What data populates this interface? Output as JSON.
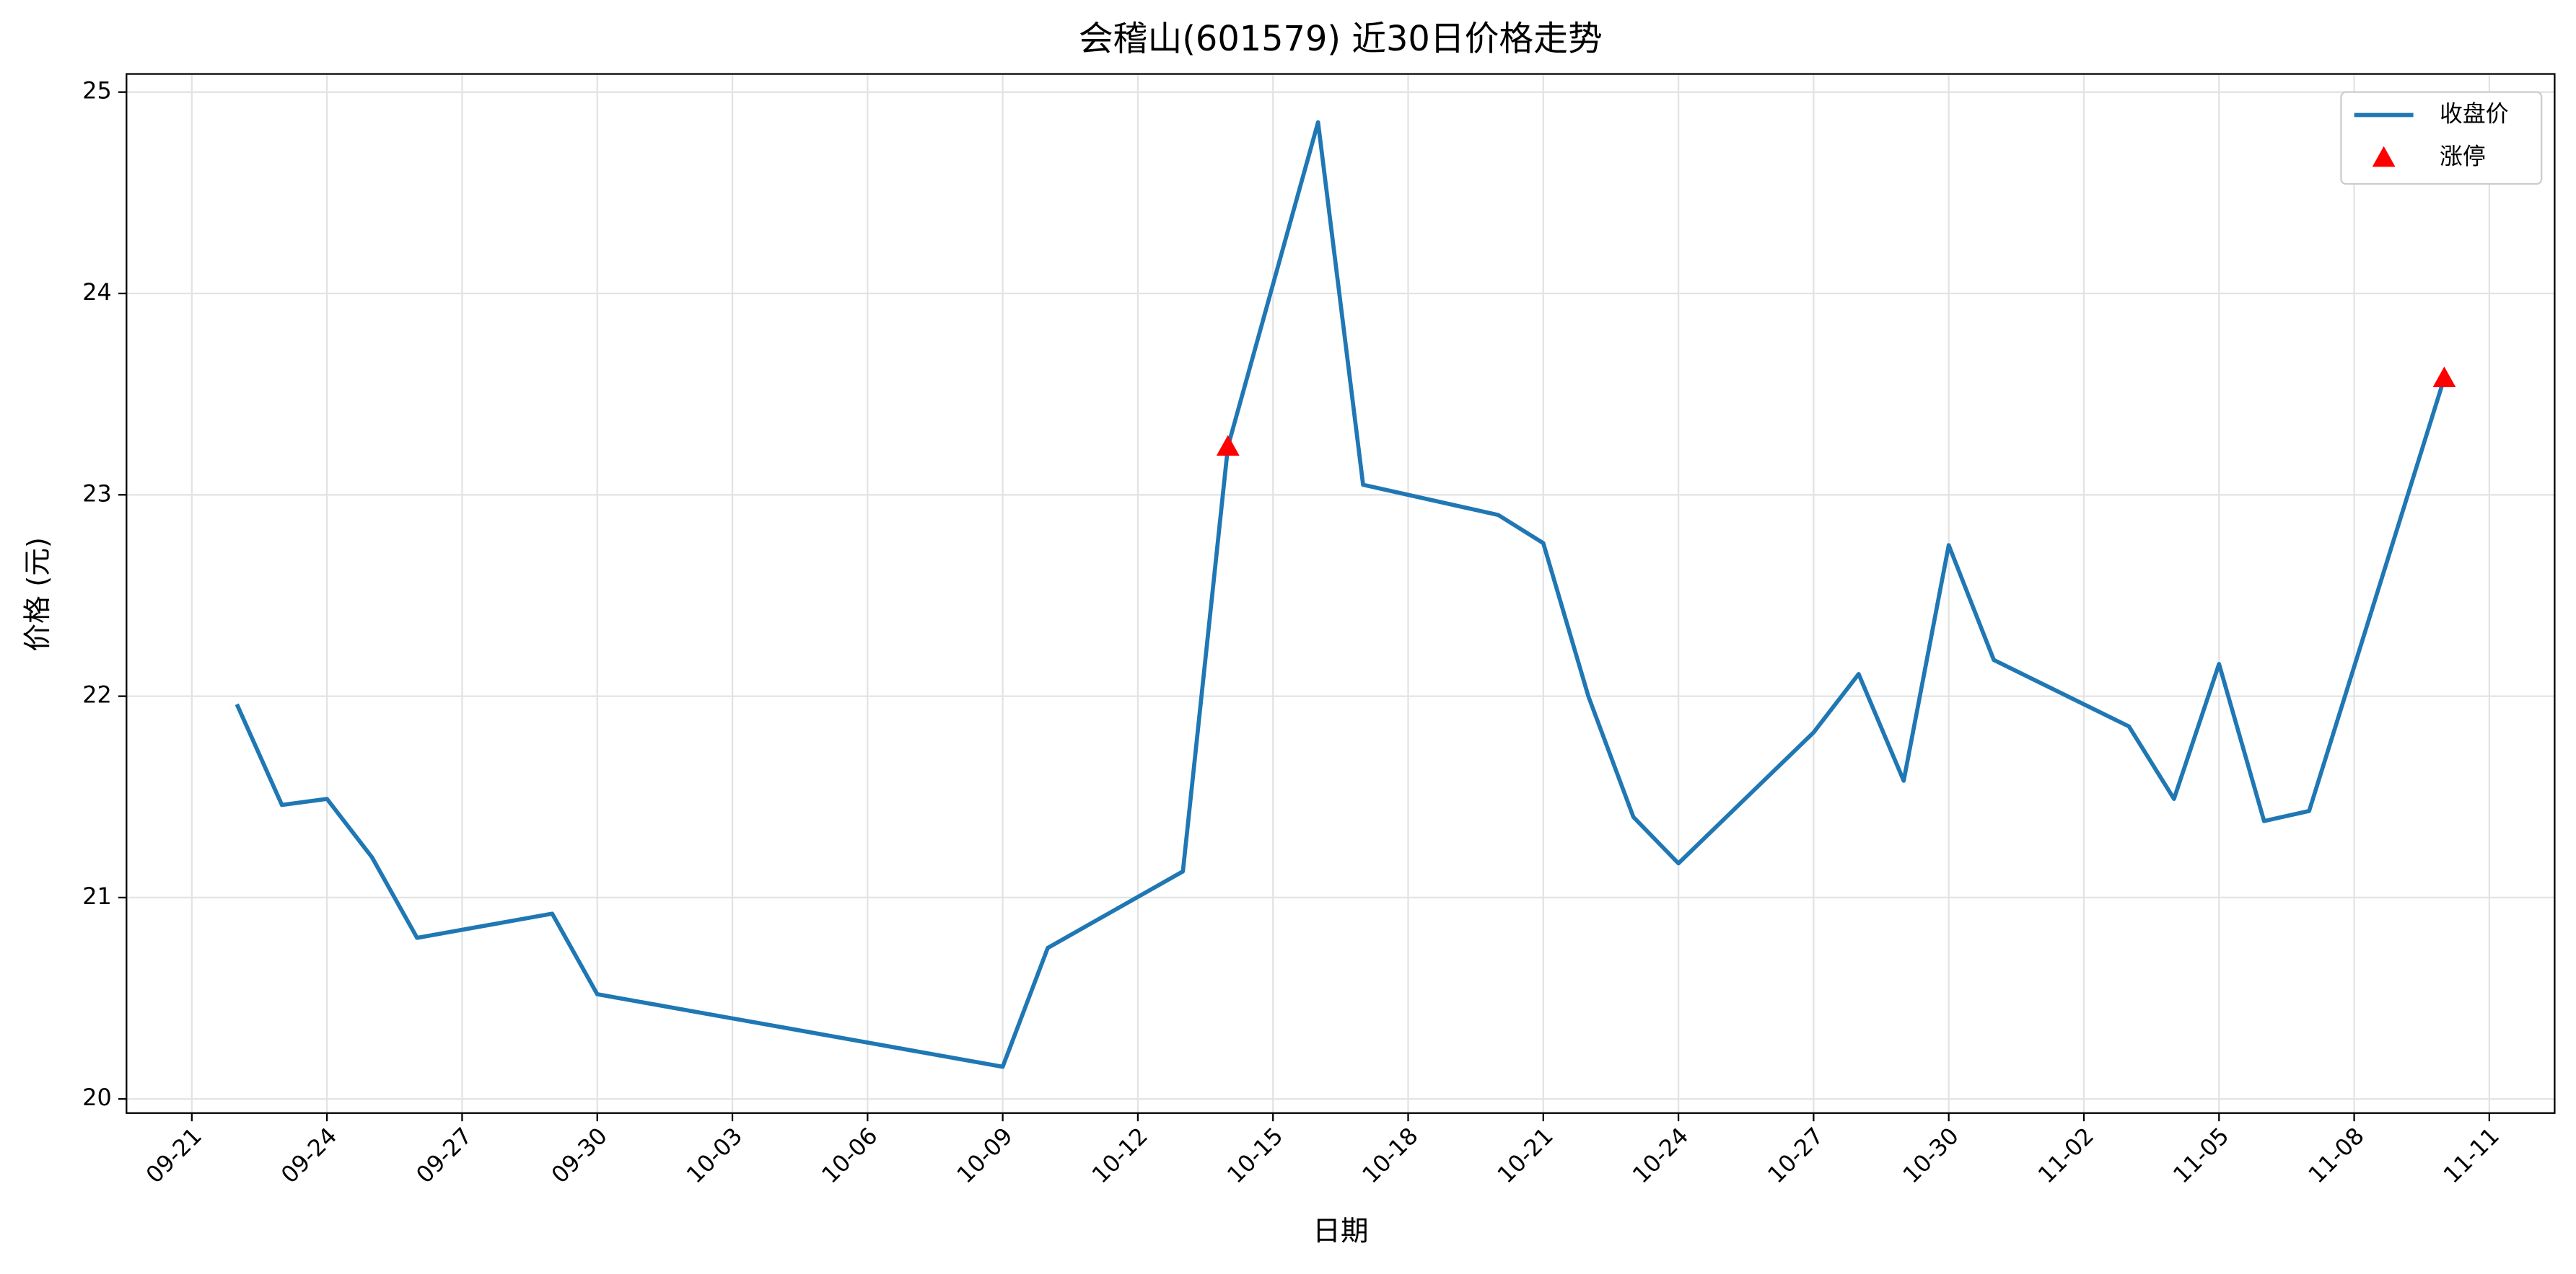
{
  "chart_data": {
    "type": "line",
    "title": "会稽山(601579) 近30日价格走势",
    "x_label": "日期",
    "y_label": "价格 (元)",
    "x": [
      "09-22",
      "09-23",
      "09-24",
      "09-25",
      "09-26",
      "09-29",
      "09-30",
      "10-09",
      "10-10",
      "10-13",
      "10-14",
      "10-16",
      "10-17",
      "10-20",
      "10-21",
      "10-22",
      "10-23",
      "10-24",
      "10-27",
      "10-28",
      "10-29",
      "10-30",
      "10-31",
      "11-03",
      "11-04",
      "11-05",
      "11-06",
      "11-07",
      "11-10"
    ],
    "series": [
      {
        "name": "收盘价",
        "color": "#1f77b4",
        "type": "line",
        "values": [
          21.96,
          21.46,
          21.49,
          21.2,
          20.8,
          20.92,
          20.52,
          20.16,
          20.75,
          21.13,
          23.24,
          24.85,
          23.05,
          22.9,
          22.76,
          22.0,
          21.4,
          21.17,
          21.82,
          22.11,
          21.58,
          22.75,
          22.18,
          21.85,
          21.49,
          22.16,
          21.38,
          21.43,
          23.58
        ]
      },
      {
        "name": "涨停",
        "color": "#ff0000",
        "type": "scatter",
        "x": [
          "10-14",
          "11-10"
        ],
        "values": [
          23.24,
          23.58
        ]
      }
    ],
    "ylim": [
      19.93,
      25.09
    ],
    "yticks": [
      20,
      21,
      22,
      23,
      24,
      25
    ],
    "xticks": [
      "09-21",
      "09-24",
      "09-27",
      "09-30",
      "10-03",
      "10-06",
      "10-09",
      "10-12",
      "10-15",
      "10-18",
      "10-21",
      "10-24",
      "10-27",
      "10-30",
      "11-02",
      "11-05",
      "11-08",
      "11-11"
    ],
    "grid": true,
    "legend": "upper right"
  }
}
